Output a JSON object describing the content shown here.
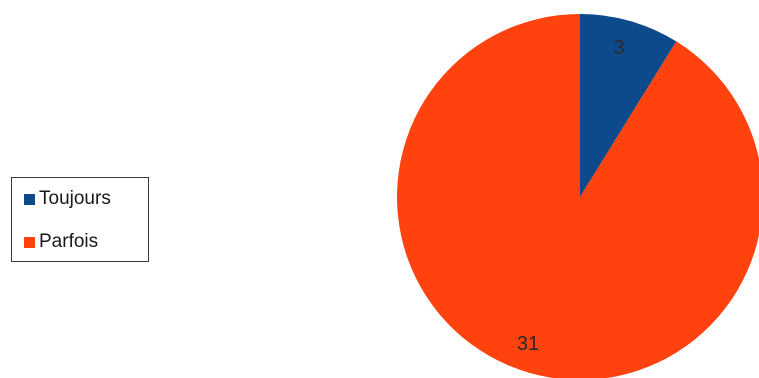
{
  "chart_data": {
    "type": "pie",
    "categories": [
      "Toujours",
      "Parfois"
    ],
    "values": [
      3,
      31
    ],
    "colors": [
      "#0d4a8c",
      "#ff420e"
    ],
    "data_labels": [
      "3",
      "31"
    ],
    "legend_position": "left"
  },
  "legend": {
    "items": [
      {
        "label": "Toujours",
        "color": "#0d4a8c"
      },
      {
        "label": "Parfois",
        "color": "#ff420e"
      }
    ]
  }
}
